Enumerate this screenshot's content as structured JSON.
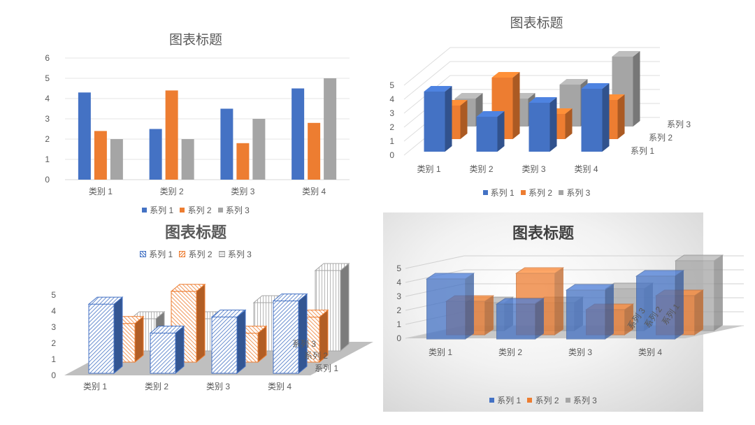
{
  "colors": {
    "series1": "#4472C4",
    "series2": "#ED7D31",
    "series3": "#A5A5A5",
    "text": "#595959"
  },
  "chart_data": [
    {
      "type": "bar",
      "title": "图表标题",
      "categories": [
        "类别 1",
        "类别 2",
        "类别 3",
        "类别 4"
      ],
      "series": [
        {
          "name": "系列 1",
          "values": [
            4.3,
            2.5,
            3.5,
            4.5
          ]
        },
        {
          "name": "系列 2",
          "values": [
            2.4,
            4.4,
            1.8,
            2.8
          ]
        },
        {
          "name": "系列 3",
          "values": [
            2,
            2,
            3,
            5
          ]
        }
      ],
      "yticks": [
        "0",
        "1",
        "2",
        "3",
        "4",
        "5",
        "6"
      ],
      "ylim": [
        0,
        6
      ],
      "grid": true,
      "legend": "bottom"
    },
    {
      "type": "bar",
      "style": "3d-column",
      "title": "图表标题",
      "categories": [
        "类别 1",
        "类别 2",
        "类别 3",
        "类别 4"
      ],
      "series": [
        {
          "name": "系列 1",
          "values": [
            4.3,
            2.5,
            3.5,
            4.5
          ]
        },
        {
          "name": "系列 2",
          "values": [
            2.4,
            4.4,
            1.8,
            2.8
          ]
        },
        {
          "name": "系列 3",
          "values": [
            2,
            2,
            3,
            5
          ]
        }
      ],
      "depth_labels": [
        "系列 1",
        "系列 2",
        "系列 3"
      ],
      "yticks": [
        "0",
        "1",
        "2",
        "3",
        "4",
        "5"
      ],
      "ylim": [
        0,
        5
      ],
      "grid": true,
      "legend": "bottom"
    },
    {
      "type": "bar",
      "style": "3d-column-hatched",
      "title": "图表标题",
      "categories": [
        "类别 1",
        "类别 2",
        "类别 3",
        "类别 4"
      ],
      "series": [
        {
          "name": "系列 1",
          "values": [
            4.3,
            2.5,
            3.5,
            4.5
          ]
        },
        {
          "name": "系列 2",
          "values": [
            2.4,
            4.4,
            1.8,
            2.8
          ]
        },
        {
          "name": "系列 3",
          "values": [
            2,
            2,
            3,
            5
          ]
        }
      ],
      "depth_labels": [
        "系列 1",
        "系列 2",
        "系列 3"
      ],
      "yticks": [
        "0",
        "1",
        "2",
        "3",
        "4",
        "5"
      ],
      "ylim": [
        0,
        5
      ],
      "grid": false,
      "legend": "top"
    },
    {
      "type": "bar",
      "style": "3d-column-transparent",
      "title": "图表标题",
      "categories": [
        "类别 1",
        "类别 2",
        "类别 3",
        "类别 4"
      ],
      "series": [
        {
          "name": "系列 1",
          "values": [
            4.3,
            2.5,
            3.5,
            4.5
          ]
        },
        {
          "name": "系列 2",
          "values": [
            2.4,
            4.4,
            1.8,
            2.8
          ]
        },
        {
          "name": "系列 3",
          "values": [
            2,
            2,
            3,
            5
          ]
        }
      ],
      "depth_labels": [
        "系列 1",
        "系列 2",
        "系列 3"
      ],
      "yticks": [
        "0",
        "1",
        "2",
        "3",
        "4",
        "5"
      ],
      "ylim": [
        0,
        5
      ],
      "grid": true,
      "legend": "bottom"
    }
  ]
}
